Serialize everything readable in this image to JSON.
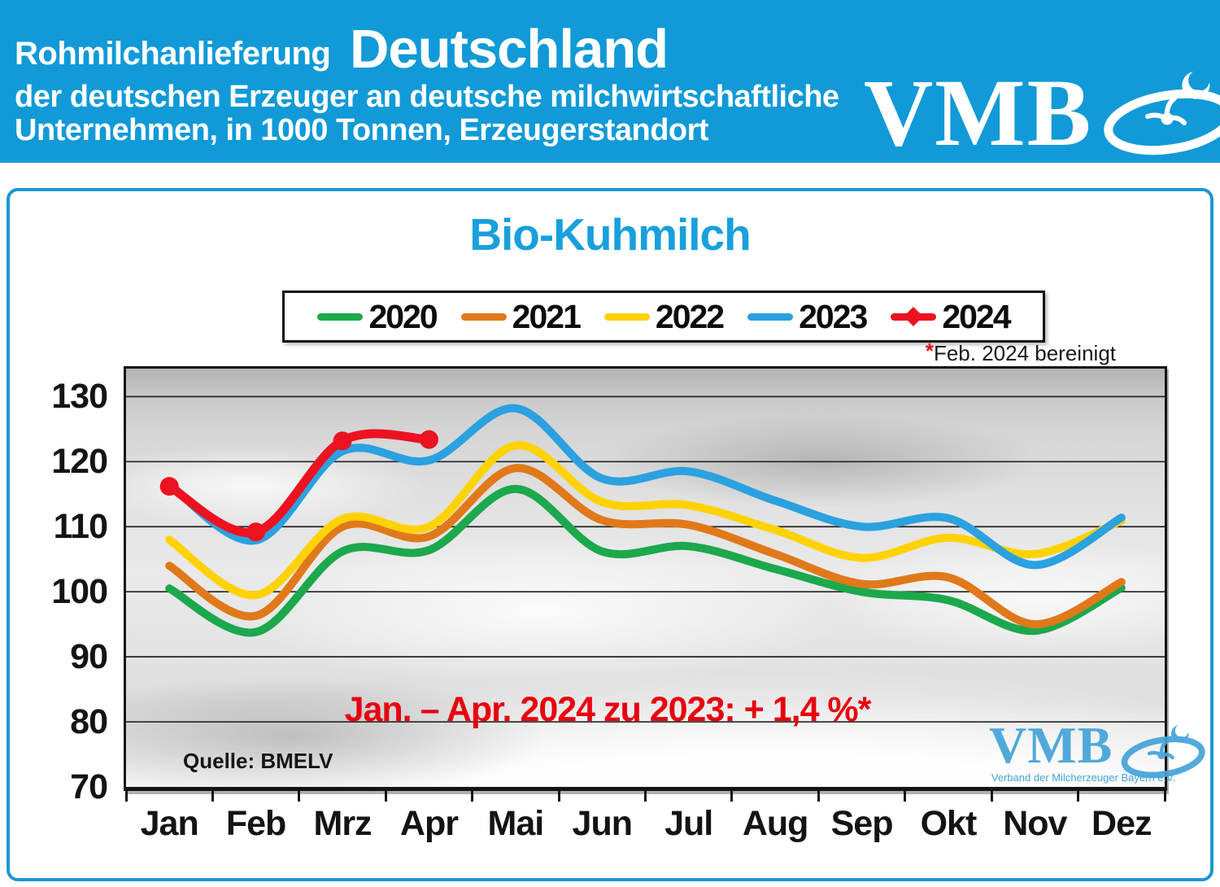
{
  "header": {
    "title_small": "Rohmilchanlieferung",
    "title_big": "Deutschland",
    "subtitle_line1": "der deutschen Erzeuger an deutsche milchwirtschaftliche",
    "subtitle_line2": "Unternehmen, in 1000 Tonnen, Erzeugerstandort",
    "logo_text": "VMB",
    "bg_color": "#119ad7"
  },
  "chart": {
    "title": "Bio-Kuhmilch",
    "title_color": "#17a0dc",
    "footnote_star": "*",
    "footnote_text": "Feb. 2024 bereinigt",
    "annotation": "Jan. – Apr. 2024 zu 2023: + 1,4 %*",
    "annotation_color": "#e8000f",
    "source": "Quelle: BMELV",
    "watermark_text": "VMB",
    "watermark_subtext": "Verband der Milcherzeuger Bayern e.V.",
    "watermark_color": "#43a3d8",
    "card_border_color": "#1e96d6"
  },
  "chart_data": {
    "type": "line",
    "title": "Bio-Kuhmilch",
    "categories": [
      "Jan",
      "Feb",
      "Mrz",
      "Apr",
      "Mai",
      "Jun",
      "Jul",
      "Aug",
      "Sep",
      "Okt",
      "Nov",
      "Dez"
    ],
    "series": [
      {
        "name": "2020",
        "color": "#1ca84c",
        "values": [
          100.5,
          93.8,
          106.2,
          106.4,
          115.8,
          106.2,
          107.0,
          103.5,
          100.0,
          98.7,
          94.0,
          100.6
        ]
      },
      {
        "name": "2021",
        "color": "#e0791a",
        "values": [
          104.0,
          96.3,
          110.0,
          108.5,
          119.0,
          111.0,
          110.3,
          105.8,
          101.2,
          102.2,
          95.0,
          101.5
        ]
      },
      {
        "name": "2022",
        "color": "#ffd204",
        "values": [
          108.0,
          99.5,
          111.2,
          110.0,
          122.5,
          113.8,
          113.3,
          109.5,
          105.2,
          108.3,
          105.8,
          110.9
        ]
      },
      {
        "name": "2023",
        "color": "#2ba1e0",
        "values": [
          116.5,
          107.9,
          121.6,
          120.2,
          128.2,
          117.4,
          118.5,
          114.0,
          110.0,
          111.3,
          104.1,
          111.4
        ]
      },
      {
        "name": "2024",
        "color": "#ec1220",
        "values": [
          116.2,
          109.2,
          123.2,
          123.4
        ],
        "marker": true
      }
    ],
    "ylim": [
      70,
      134.3
    ],
    "yticks": [
      70,
      80,
      90,
      100,
      110,
      120,
      130
    ],
    "grid": true,
    "legend_position": "top",
    "xlabel": "",
    "ylabel": ""
  }
}
